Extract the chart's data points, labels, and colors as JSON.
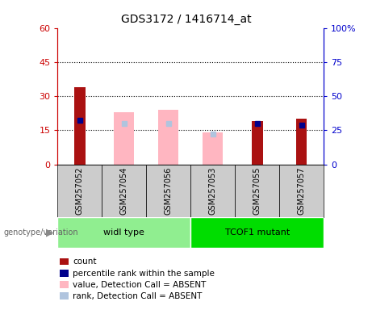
{
  "title": "GDS3172 / 1416714_at",
  "samples": [
    "GSM257052",
    "GSM257054",
    "GSM257056",
    "GSM257053",
    "GSM257055",
    "GSM257057"
  ],
  "count_values": [
    34,
    null,
    null,
    null,
    19,
    20
  ],
  "count_color": "#AA1111",
  "percentile_rank_values": [
    32,
    null,
    null,
    null,
    30,
    29
  ],
  "percentile_rank_color": "#00008B",
  "value_absent_values": [
    null,
    23,
    24,
    14,
    null,
    null
  ],
  "value_absent_color": "#FFB6C1",
  "rank_absent_values": [
    null,
    30,
    30,
    22,
    null,
    null
  ],
  "rank_absent_color": "#B0C4DE",
  "ylim_left": [
    0,
    60
  ],
  "ylim_right": [
    0,
    100
  ],
  "yticks_left": [
    0,
    15,
    30,
    45,
    60
  ],
  "ytick_labels_left": [
    "0",
    "15",
    "30",
    "45",
    "60"
  ],
  "yticks_right": [
    0,
    25,
    50,
    75,
    100
  ],
  "ytick_labels_right": [
    "0",
    "25",
    "50",
    "75",
    "100%"
  ],
  "left_axis_color": "#CC0000",
  "right_axis_color": "#0000CC",
  "bar_width": 0.25,
  "marker_size": 5,
  "genotype_label": "genotype/variation",
  "group1_name": "widl type",
  "group1_color": "#90EE90",
  "group2_name": "TCOF1 mutant",
  "group2_color": "#00DD00",
  "legend_items": [
    {
      "label": "count",
      "color": "#AA1111"
    },
    {
      "label": "percentile rank within the sample",
      "color": "#00008B"
    },
    {
      "label": "value, Detection Call = ABSENT",
      "color": "#FFB6C1"
    },
    {
      "label": "rank, Detection Call = ABSENT",
      "color": "#B0C4DE"
    }
  ]
}
